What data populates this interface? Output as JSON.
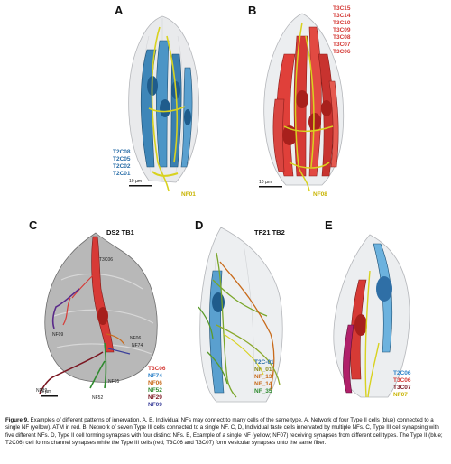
{
  "panels": {
    "A": {
      "letter": "A",
      "labels": [
        "T2C08",
        "T2C05",
        "T2C02",
        "T2C01"
      ],
      "nf_label": "NF01",
      "scale": "10 µm"
    },
    "B": {
      "letter": "B",
      "labels": [
        "T3C15",
        "T3C14",
        "T3C10",
        "T3C09",
        "T3C08",
        "T3C07",
        "T3C06"
      ],
      "nf_label": "NF08",
      "scale": "10 µm"
    },
    "C": {
      "letter": "C",
      "title": "DS2 TB1",
      "top_label": "T3C06",
      "nf_callouts": [
        "NF09",
        "NF74",
        "NF29",
        "NF05",
        "NF52",
        "NF06"
      ],
      "legend": [
        "T3C06",
        "NF74",
        "NF06",
        "NF52",
        "NF29",
        "NF09"
      ],
      "scale": "5 µm"
    },
    "D": {
      "letter": "D",
      "title": "TF21 TB2",
      "legend": [
        "T2C-01",
        "NF_01",
        "NF_13",
        "NF_14",
        "NF_35"
      ]
    },
    "E": {
      "letter": "E",
      "legend": [
        "T2C06",
        "T3C06",
        "T3C07",
        "NF07"
      ]
    }
  },
  "caption": {
    "fig": "Figure 9.",
    "text": "Examples of different patterns of innervation. A, B, Individual NFs may connect to many cells of the same type. A, Network of four Type II cells (blue) connected to a single NF (yellow). ATM in red. B, Network of seven Type III cells connected to a single NF. C, D, Individual taste cells innervated by multiple NFs. C, Type III cell synapsing with five different NFs. D, Type II cell forming synapses with four distinct NFs. E, Example of a single NF (yellow; NF07) receiving synapses from different cell types. The Type II (blue; T2C06) cell forms channel synapses while the Type III cells (red; T3C06 and T3C07) form vesicular synapses onto the same fiber."
  }
}
